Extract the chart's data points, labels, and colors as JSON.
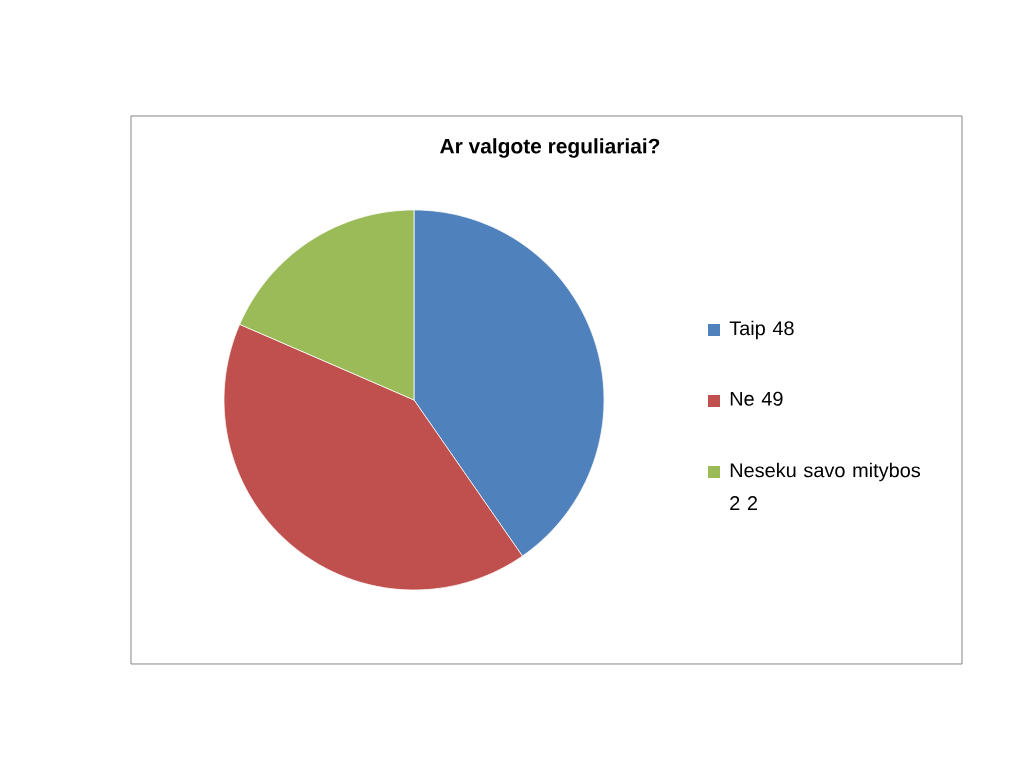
{
  "chart_data": {
    "type": "pie",
    "title": "Ar valgote reguliariai?",
    "categories": [
      "Taip 48",
      "Ne 49",
      "Neseku savo mitybos 2 2"
    ],
    "values": [
      48,
      49,
      22
    ],
    "colors": [
      "#4f81bd",
      "#c0504d",
      "#9bbb59"
    ],
    "legend": "right"
  }
}
